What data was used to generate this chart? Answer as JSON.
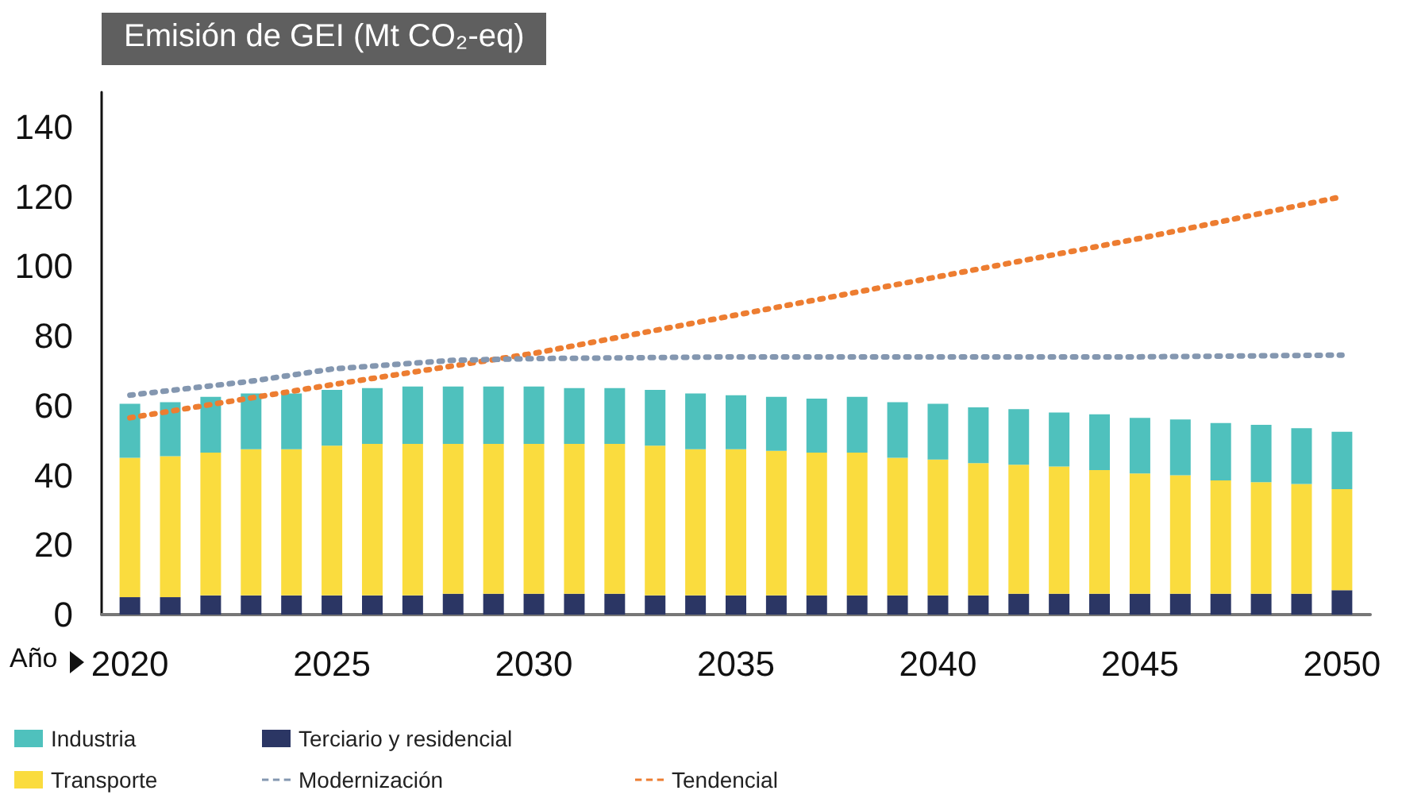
{
  "chart_data": {
    "type": "bar",
    "title": "Emisión de GEI (Mt CO₂-eq)",
    "xlabel": "Año",
    "x": [
      2020,
      2021,
      2022,
      2023,
      2024,
      2025,
      2026,
      2027,
      2028,
      2029,
      2030,
      2031,
      2032,
      2033,
      2034,
      2035,
      2036,
      2037,
      2038,
      2039,
      2040,
      2041,
      2042,
      2043,
      2044,
      2045,
      2046,
      2047,
      2048,
      2049,
      2050
    ],
    "xlim": [
      2019.3,
      2050.7
    ],
    "xticks": [
      2020,
      2025,
      2030,
      2035,
      2040,
      2045,
      2050
    ],
    "ylim": [
      0,
      150
    ],
    "yticks": [
      0,
      20,
      40,
      60,
      80,
      100,
      120,
      140
    ],
    "stacked": true,
    "grid": false,
    "legend": "bottom",
    "marker": "none",
    "series": [
      {
        "name": "Terciario y residencial",
        "color": "#2b3664",
        "values": [
          5,
          5,
          5.5,
          5.5,
          5.5,
          5.5,
          5.5,
          5.5,
          6,
          6,
          6,
          6,
          6,
          5.5,
          5.5,
          5.5,
          5.5,
          5.5,
          5.5,
          5.5,
          5.5,
          5.5,
          6,
          6,
          6,
          6,
          6,
          6,
          6,
          6,
          7
        ]
      },
      {
        "name": "Transporte",
        "color": "#fadc3e",
        "values": [
          40,
          40.5,
          41,
          42,
          42,
          43,
          43.5,
          43.5,
          43,
          43,
          43,
          43,
          43,
          43,
          42,
          42,
          41.5,
          41,
          41,
          39.5,
          39,
          38,
          37,
          36.5,
          35.5,
          34.5,
          34,
          32.5,
          32,
          31.5,
          29
        ]
      },
      {
        "name": "Industria",
        "color": "#4fc1bd",
        "values": [
          15.5,
          15.5,
          16,
          16,
          16,
          16,
          16,
          16.5,
          16.5,
          16.5,
          16.5,
          16,
          16,
          16,
          16,
          15.5,
          15.5,
          15.5,
          16,
          16,
          16,
          16,
          16,
          15.5,
          16,
          16,
          16,
          16.5,
          16.5,
          16,
          16.5
        ]
      },
      {
        "name": "Tendencial",
        "type": "line",
        "color": "#ed7d31",
        "line_style": "dotted",
        "x": [
          2020,
          2025,
          2030,
          2035,
          2040,
          2045,
          2050
        ],
        "values": [
          56.5,
          66,
          75,
          86,
          97,
          108,
          120
        ]
      },
      {
        "name": "Modernización",
        "type": "line",
        "color": "#8497b0",
        "line_style": "dotted",
        "x": [
          2020,
          2023,
          2025,
          2028,
          2030,
          2035,
          2040,
          2045,
          2050
        ],
        "values": [
          63,
          67,
          70.5,
          73,
          73.5,
          74,
          74,
          74,
          74.5
        ]
      }
    ]
  }
}
